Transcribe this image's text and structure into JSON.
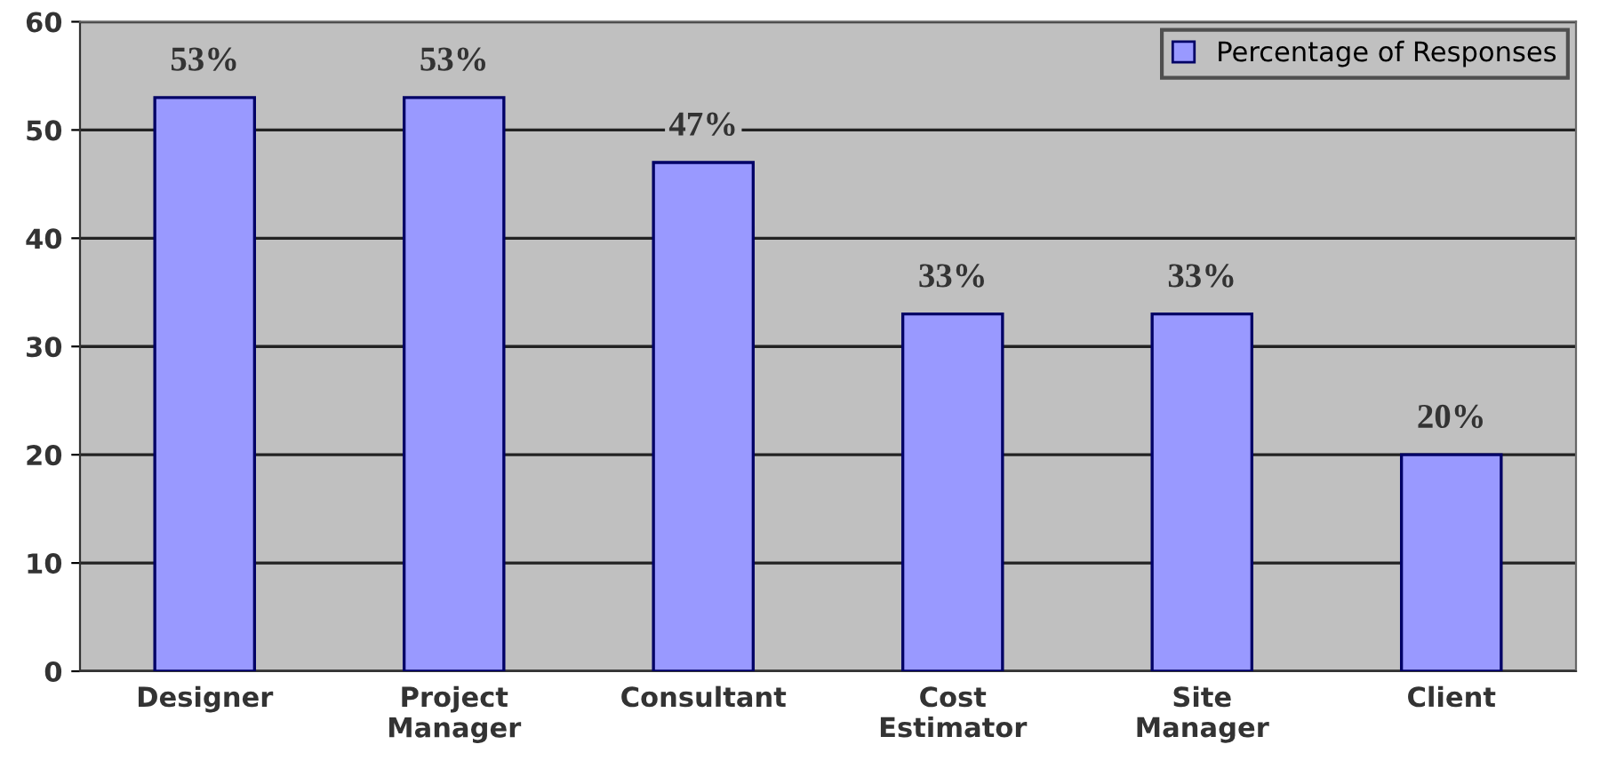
{
  "chart_data": {
    "type": "bar",
    "categories": [
      "Designer",
      "Project Manager",
      "Consultant",
      "Cost Estimator",
      "Site Manager",
      "Client"
    ],
    "series": [
      {
        "name": "Percentage of Responses",
        "color": "#9999ff",
        "values": [
          53,
          53,
          47,
          33,
          33,
          20
        ],
        "value_labels": [
          "53%",
          "53%",
          "47%",
          "33%",
          "33%",
          "20%"
        ]
      }
    ],
    "ylim": [
      0,
      60
    ],
    "yticks": [
      0,
      10,
      20,
      30,
      40,
      50,
      60
    ],
    "grid": "y",
    "legend": "top right"
  }
}
